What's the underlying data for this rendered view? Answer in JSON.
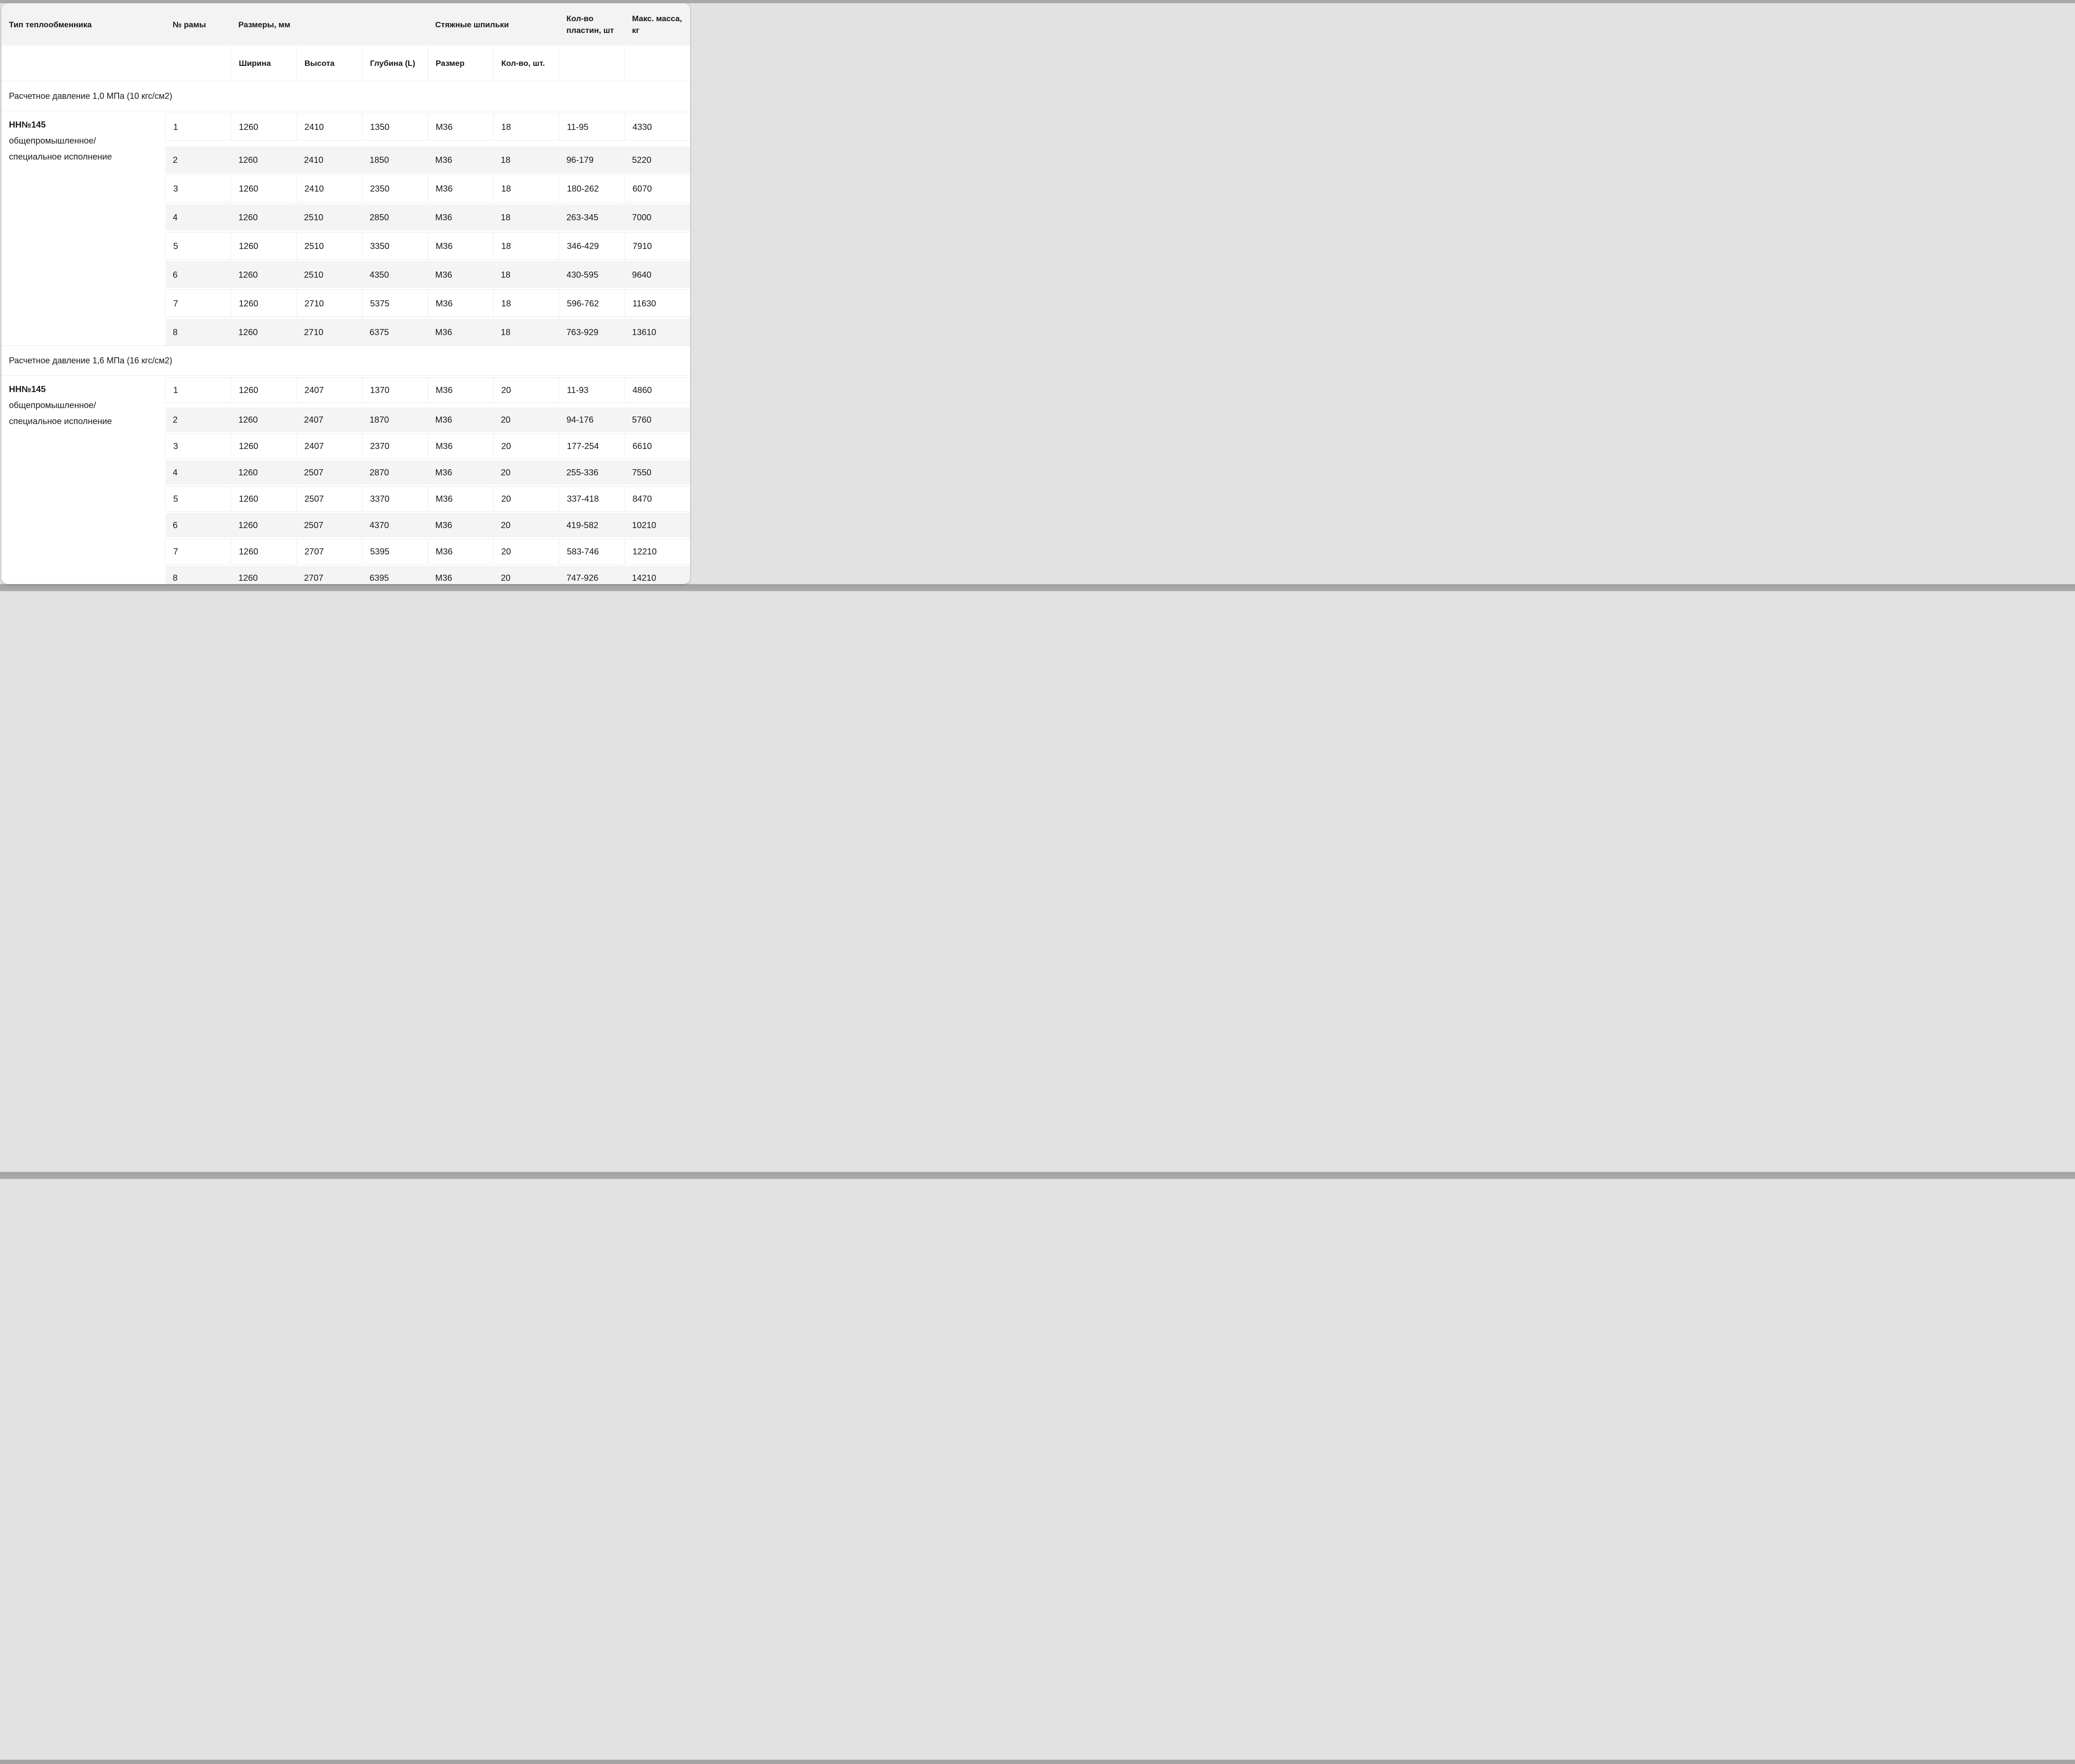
{
  "table": {
    "columns": {
      "type": "Тип теплообменника",
      "frame": "№ рамы",
      "dims_group": "Размеры, мм",
      "studs_group": "Стяжные шпильки",
      "plates": "Кол-во пластин, шт",
      "mass": "Макс. масса, кг"
    },
    "subcolumns": {
      "width": "Ширина",
      "height": "Высота",
      "depth": "Глубина (L)",
      "stud_size": "Размер",
      "stud_qty": "Кол-во, шт."
    },
    "sections": [
      {
        "title": "Расчетное давление 1,0 МПа (10 кгс/см2)",
        "type_name": "НН№145",
        "type_desc_line1": "общепромышленное/",
        "type_desc_line2": "специальное исполнение",
        "rows": [
          [
            "1",
            "1260",
            "2410",
            "1350",
            "М36",
            "18",
            "11-95",
            "4330"
          ],
          [
            "2",
            "1260",
            "2410",
            "1850",
            "М36",
            "18",
            "96-179",
            "5220"
          ],
          [
            "3",
            "1260",
            "2410",
            "2350",
            "М36",
            "18",
            "180-262",
            "6070"
          ],
          [
            "4",
            "1260",
            "2510",
            "2850",
            "М36",
            "18",
            "263-345",
            "7000"
          ],
          [
            "5",
            "1260",
            "2510",
            "3350",
            "М36",
            "18",
            "346-429",
            "7910"
          ],
          [
            "6",
            "1260",
            "2510",
            "4350",
            "М36",
            "18",
            "430-595",
            "9640"
          ],
          [
            "7",
            "1260",
            "2710",
            "5375",
            "М36",
            "18",
            "596-762",
            "11630"
          ],
          [
            "8",
            "1260",
            "2710",
            "6375",
            "М36",
            "18",
            "763-929",
            "13610"
          ]
        ]
      },
      {
        "title": "Расчетное давление 1,6 МПа (16 кгс/см2)",
        "type_name": "НН№145",
        "type_desc_line1": "общепромышленное/",
        "type_desc_line2": "специальное исполнение",
        "rows": [
          [
            "1",
            "1260",
            "2407",
            "1370",
            "М36",
            "20",
            "11-93",
            "4860"
          ],
          [
            "2",
            "1260",
            "2407",
            "1870",
            "М36",
            "20",
            "94-176",
            "5760"
          ],
          [
            "3",
            "1260",
            "2407",
            "2370",
            "М36",
            "20",
            "177-254",
            "6610"
          ],
          [
            "4",
            "1260",
            "2507",
            "2870",
            "М36",
            "20",
            "255-336",
            "7550"
          ],
          [
            "5",
            "1260",
            "2507",
            "3370",
            "М36",
            "20",
            "337-418",
            "8470"
          ],
          [
            "6",
            "1260",
            "2507",
            "4370",
            "М36",
            "20",
            "419-582",
            "10210"
          ],
          [
            "7",
            "1260",
            "2707",
            "5395",
            "М36",
            "20",
            "583-746",
            "12210"
          ],
          [
            "8",
            "1260",
            "2707",
            "6395",
            "М36",
            "20",
            "747-926",
            "14210"
          ]
        ]
      }
    ]
  }
}
